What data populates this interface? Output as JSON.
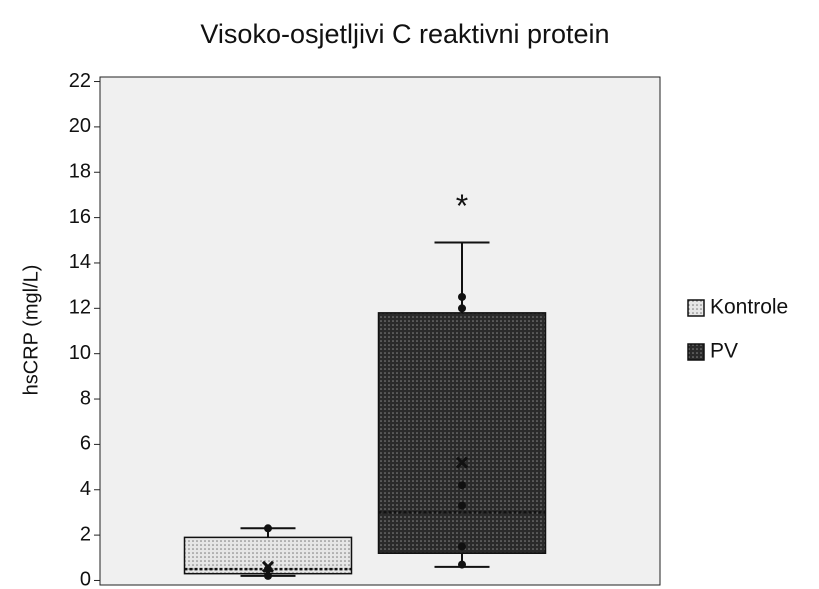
{
  "chart_data": {
    "type": "box",
    "title": "Visoko-osjetljivi C reaktivni protein",
    "ylabel": "hsCRP (mgl/L)",
    "ylim": [
      -0.2,
      22.2
    ],
    "yticks": [
      0,
      2,
      4,
      6,
      8,
      10,
      12,
      14,
      16,
      18,
      20,
      22
    ],
    "annotation": "*",
    "annotation_color": "#d0242a",
    "background": "#f0f0f0",
    "series": [
      {
        "name": "Kontrole",
        "color": "#e6e6e6",
        "dot_color": "#777777",
        "whislo": 0.2,
        "q1": 0.3,
        "med": 0.5,
        "q3": 1.9,
        "whishi": 2.3,
        "mean": 0.6,
        "points": [
          2.3,
          0.5,
          0.2
        ]
      },
      {
        "name": "PV",
        "color": "#2a2a2a",
        "dot_color": "#8a8a8a",
        "whislo": 0.6,
        "q1": 1.2,
        "med": 3.0,
        "q3": 11.8,
        "whishi": 14.9,
        "mean": 5.2,
        "points": [
          12.5,
          12.0,
          4.2,
          3.3,
          1.5,
          0.7
        ]
      }
    ]
  }
}
